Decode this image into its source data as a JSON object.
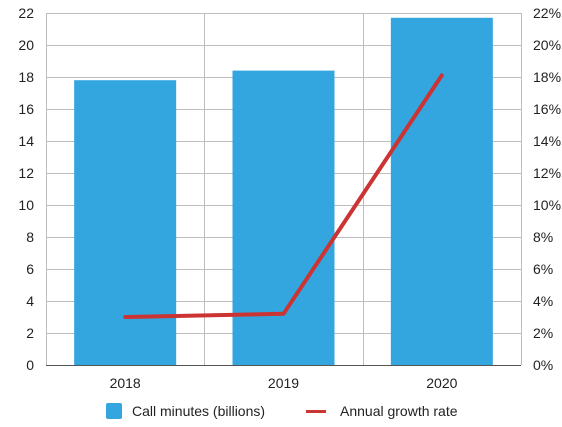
{
  "chart_data": {
    "type": "bar",
    "categories": [
      "2018",
      "2019",
      "2020"
    ],
    "series": [
      {
        "name": "Call minutes (billions)",
        "kind": "bar",
        "axis": "left",
        "color": "#34a6df",
        "values": [
          17.8,
          18.4,
          21.7
        ]
      },
      {
        "name": "Annual growth rate",
        "kind": "line",
        "axis": "right",
        "color": "#cc3333",
        "values": [
          3.0,
          3.2,
          18.1
        ]
      }
    ],
    "ylim": [
      0,
      22
    ],
    "yticks": [
      "0",
      "2",
      "4",
      "6",
      "8",
      "10",
      "12",
      "14",
      "16",
      "18",
      "20",
      "22"
    ],
    "y2lim": [
      0,
      22
    ],
    "y2ticks": [
      "0%",
      "2%",
      "4%",
      "6%",
      "8%",
      "10%",
      "12%",
      "14%",
      "16%",
      "18%",
      "20%",
      "22%"
    ],
    "grid": true,
    "legend_position": "bottom"
  }
}
